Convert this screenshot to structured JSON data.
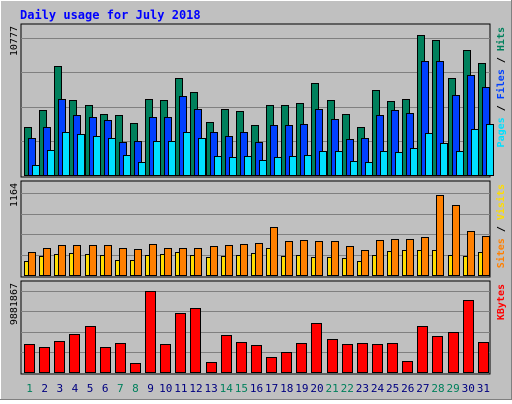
{
  "chart_data": {
    "type": "bar",
    "title": "Daily usage for July 2018",
    "categories": [
      "1",
      "2",
      "3",
      "4",
      "5",
      "6",
      "7",
      "8",
      "9",
      "10",
      "11",
      "12",
      "13",
      "14",
      "15",
      "16",
      "17",
      "18",
      "19",
      "20",
      "21",
      "22",
      "23",
      "24",
      "25",
      "26",
      "27",
      "28",
      "29",
      "30",
      "31"
    ],
    "weekend_days": [
      "1",
      "7",
      "8",
      "14",
      "15",
      "21",
      "22",
      "28",
      "29"
    ],
    "panels": [
      {
        "name": "hits-files-pages",
        "max_label": "10777",
        "ylim": [
          0,
          10777
        ],
        "axis_labels": [
          {
            "text": "Pages",
            "color": "#00e0ff"
          },
          {
            "text": " / ",
            "color": "#000000"
          },
          {
            "text": "Files",
            "color": "#0040ff"
          },
          {
            "text": " / ",
            "color": "#000000"
          },
          {
            "text": "Hits",
            "color": "#00805c"
          }
        ],
        "series": [
          {
            "name": "Hits",
            "color": "#00805c",
            "values": [
              3800,
              5100,
              8600,
              5900,
              5500,
              4800,
              4700,
              4100,
              6000,
              5900,
              7600,
              6500,
              4200,
              5200,
              5000,
              3900,
              5500,
              5500,
              5700,
              7200,
              5900,
              4800,
              3800,
              6700,
              5800,
              6000,
              11000,
              10600,
              7600,
              9800,
              8800
            ]
          },
          {
            "name": "Files",
            "color": "#0040ff",
            "values": [
              2900,
              3800,
              6000,
              4700,
              4600,
              4300,
              2600,
              2700,
              4600,
              4600,
              6200,
              5200,
              3400,
              3100,
              3400,
              2600,
              3900,
              3900,
              4000,
              5200,
              4400,
              2800,
              2900,
              4700,
              5100,
              4900,
              9000,
              9000,
              6300,
              7900,
              6900
            ]
          },
          {
            "name": "Pages",
            "color": "#00e0ff",
            "values": [
              800,
              2000,
              3400,
              3200,
              3100,
              2900,
              1600,
              1000,
              2700,
              2700,
              3400,
              2900,
              1500,
              1400,
              1500,
              1200,
              1400,
              1500,
              1600,
              1900,
              1900,
              1100,
              1000,
              1900,
              1800,
              2100,
              3300,
              2500,
              1900,
              3600,
              4000
            ]
          }
        ]
      },
      {
        "name": "visits-sites",
        "max_label": "1164",
        "ylim": [
          0,
          1164
        ],
        "axis_labels": [
          {
            "text": "Sites",
            "color": "#ff8000"
          },
          {
            "text": " / ",
            "color": "#000000"
          },
          {
            "text": "Visits",
            "color": "#ffdd00"
          }
        ],
        "series": [
          {
            "name": "Visits",
            "color": "#ffdd00",
            "values": [
              200,
              270,
              300,
              310,
              300,
              290,
              220,
              220,
              280,
              300,
              320,
              290,
              260,
              270,
              280,
              310,
              380,
              270,
              290,
              260,
              260,
              240,
              200,
              290,
              340,
              350,
              350,
              360,
              290,
              270,
              330
            ]
          },
          {
            "name": "Sites",
            "color": "#ff8000",
            "values": [
              330,
              380,
              420,
              430,
              420,
              420,
              380,
              370,
              440,
              380,
              380,
              390,
              410,
              430,
              440,
              450,
              680,
              480,
              500,
              480,
              480,
              410,
              360,
              490,
              510,
              510,
              540,
              1130,
              1000,
              620,
              560
            ]
          }
        ]
      },
      {
        "name": "kbytes",
        "max_label": "9881867",
        "ylim": [
          0,
          9881867
        ],
        "axis_labels": [
          {
            "text": "KBytes",
            "color": "#ff0000"
          }
        ],
        "series": [
          {
            "name": "KBytes",
            "color": "#ff0000",
            "values": [
              3400000,
              3000000,
              3800000,
              4600000,
              5600000,
              3000000,
              3500000,
              1100000,
              9880000,
              3400000,
              7200000,
              7800000,
              1200000,
              4500000,
              3600000,
              3300000,
              1800000,
              2500000,
              3500000,
              6000000,
              4000000,
              3400000,
              3500000,
              3400000,
              3500000,
              1300000,
              5600000,
              4400000,
              4900000,
              8800000,
              3700000
            ]
          }
        ]
      }
    ]
  }
}
